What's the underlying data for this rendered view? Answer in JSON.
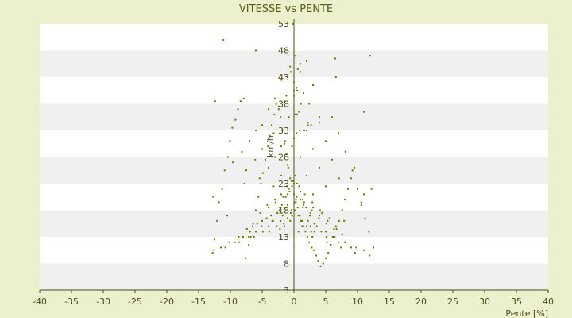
{
  "chart_data": {
    "type": "scatter",
    "title": "VITESSE vs PENTE",
    "xlabel": "Pente [%]",
    "ylabel": "km/h",
    "xlim": [
      -40,
      40
    ],
    "ylim": [
      3,
      53
    ],
    "x_ticks": [
      "-40",
      "-35",
      "-30",
      "-25",
      "-20",
      "-15",
      "-10",
      "-5",
      "0",
      "5",
      "10",
      "15",
      "20",
      "25",
      "30",
      "35",
      "40"
    ],
    "y_ticks": [
      "53",
      "48",
      "43",
      "38",
      "33",
      "28",
      "23",
      "18",
      "13",
      "8",
      "3"
    ],
    "grid": true,
    "legend": "none",
    "colors": {
      "background": "#ecf0cc",
      "band_light": "#ffffff",
      "band_dark": "#f0f0f0",
      "point": "#6b7a00",
      "axis": "#4d4d1a"
    },
    "points_x": [
      -12.8,
      -12.5,
      -12.1,
      -11.8,
      -11.3,
      -10.9,
      -10.4,
      -10.1,
      -9.7,
      -9.2,
      -8.8,
      -8.4,
      -7.9,
      -7.6,
      -7.1,
      -6.8,
      -6.4,
      -6.0,
      -5.6,
      -5.2,
      -4.9,
      -4.5,
      -4.1,
      -3.8,
      -3.5,
      -3.1,
      -2.8,
      -2.4,
      -2.1,
      -1.8,
      -1.5,
      -1.2,
      -0.9,
      -0.6,
      -0.3,
      0.0,
      0.3,
      0.6,
      0.9,
      1.2,
      1.5,
      1.8,
      2.1,
      2.4,
      2.8,
      3.1,
      3.5,
      3.8,
      4.2,
      4.6,
      5.0,
      5.4,
      5.8,
      6.2,
      6.7,
      7.1,
      7.6,
      8.0,
      8.5,
      9.0,
      9.5,
      10.0,
      10.6,
      11.2,
      11.8,
      12.5,
      -3.3,
      -2.6,
      -1.9,
      -1.3,
      -0.8,
      -0.4,
      0.1,
      0.5,
      1.0,
      1.4,
      1.9,
      2.5,
      3.2,
      -2.2,
      -1.6,
      -1.0,
      -0.5,
      0.2,
      0.7,
      1.3,
      2.0,
      2.7,
      -4.2,
      -3.0,
      -2.0,
      -1.1,
      -0.2,
      0.8,
      1.7,
      2.9,
      4.1,
      -5.3,
      -4.0,
      -2.9,
      -1.7,
      -0.7,
      0.4,
      1.6,
      3.0,
      4.4,
      5.6,
      -6.5,
      -5.0,
      -3.6,
      -2.3,
      -1.0,
      0.3,
      1.5,
      2.8,
      4.0,
      5.3,
      6.6,
      -7.4,
      -5.8,
      -4.3,
      -2.7,
      -1.2,
      0.2,
      1.4,
      2.6,
      3.9,
      5.1,
      6.3,
      7.6,
      -8.7,
      -6.9,
      -5.1,
      -3.4,
      -1.8,
      -0.4,
      0.9,
      2.2,
      3.6,
      5.0,
      6.4,
      8.1,
      -10.2,
      -8.0,
      -6.0,
      -4.0,
      -2.1,
      -0.3,
      1.1,
      2.6,
      4.3,
      6.1,
      8.0,
      9.8,
      -11.5,
      -9.3,
      -7.1,
      -4.9,
      -2.7,
      -0.6,
      1.3,
      3.2,
      5.1,
      7.0,
      9.0,
      11.0,
      -12.6,
      -10.8,
      -8.6,
      -6.3,
      -3.9,
      -1.5,
      0.7,
      2.9,
      5.2,
      7.4,
      9.6,
      11.9,
      -9.6,
      -7.5,
      -5.4,
      -3.2,
      -1.0,
      1.0,
      3.0,
      5.0,
      7.1,
      9.2,
      -8.2,
      -6.1,
      -4.0,
      -2.0,
      0.0,
      2.0,
      4.0,
      6.0,
      8.1,
      -7.0,
      -5.0,
      -3.0,
      -1.0,
      1.0,
      3.0,
      5.0,
      7.0,
      -6.0,
      -4.0,
      -2.0,
      0.0,
      2.0,
      4.0,
      6.0,
      -5.0,
      -3.2,
      -1.4,
      0.4,
      2.2,
      4.0,
      -4.0,
      -2.4,
      -0.8,
      0.8,
      2.4,
      -3.0,
      -1.5,
      0.0,
      1.5,
      3.0,
      -2.0,
      -1.0,
      0.0,
      1.0,
      2.0,
      -0.6,
      0.4,
      1.1,
      -1.2,
      0.0,
      0.9,
      -0.3,
      0.5,
      2.2,
      -12.4,
      -12.7,
      11.0,
      12.2,
      -7.8,
      7.9,
      -10.5,
      10.6,
      -11.1,
      12.0,
      -6.0,
      6.5,
      1.0,
      0.6,
      0.2,
      0.1,
      -0.2,
      -0.5,
      6.6,
      11.0,
      2.7,
      0.5,
      1.6,
      -1.2,
      2.0,
      -0.6,
      1.8
    ],
    "points_y": [
      10.0,
      12.5,
      16.0,
      19.5,
      22.0,
      25.5,
      28.0,
      31.0,
      33.5,
      35.0,
      37.0,
      38.5,
      39.0,
      9.0,
      11.5,
      13.0,
      15.5,
      18.0,
      20.5,
      23.0,
      25.0,
      27.5,
      30.0,
      32.0,
      34.0,
      36.0,
      38.0,
      37.5,
      35.5,
      33.0,
      30.5,
      28.5,
      26.0,
      24.0,
      22.5,
      21.0,
      19.5,
      18.5,
      17.0,
      16.0,
      15.0,
      14.0,
      13.0,
      12.0,
      11.0,
      10.5,
      9.5,
      8.5,
      7.5,
      8.0,
      9.0,
      10.0,
      11.5,
      13.0,
      14.5,
      16.0,
      18.0,
      20.0,
      22.0,
      24.0,
      26.0,
      22.0,
      19.0,
      16.5,
      14.0,
      11.0,
      16.0,
      17.5,
      19.0,
      20.5,
      22.0,
      23.5,
      24.5,
      23.0,
      21.5,
      20.0,
      18.5,
      17.0,
      15.5,
      14.5,
      15.5,
      16.5,
      17.5,
      18.0,
      17.0,
      16.0,
      15.0,
      14.0,
      19.0,
      20.0,
      21.0,
      22.5,
      23.5,
      22.5,
      21.0,
      19.5,
      18.0,
      17.5,
      18.5,
      19.5,
      20.5,
      21.5,
      20.5,
      19.5,
      18.5,
      17.5,
      16.5,
      15.0,
      16.0,
      17.0,
      18.0,
      19.0,
      20.0,
      19.0,
      18.0,
      17.0,
      16.0,
      15.0,
      14.5,
      15.5,
      16.5,
      17.5,
      18.5,
      19.5,
      18.5,
      17.5,
      16.5,
      15.5,
      14.5,
      13.5,
      13.0,
      14.0,
      15.0,
      16.0,
      17.0,
      18.0,
      17.0,
      16.0,
      15.0,
      14.0,
      13.0,
      12.0,
      12.0,
      13.0,
      14.0,
      15.0,
      16.0,
      17.0,
      16.0,
      15.0,
      14.0,
      13.0,
      12.0,
      11.0,
      11.0,
      12.0,
      13.0,
      14.0,
      15.0,
      16.0,
      15.0,
      14.0,
      13.0,
      12.0,
      11.0,
      10.5,
      10.5,
      11.0,
      12.0,
      13.0,
      14.0,
      15.0,
      14.0,
      13.0,
      12.0,
      11.0,
      10.0,
      9.5,
      27.0,
      25.5,
      24.0,
      22.5,
      21.0,
      20.0,
      21.0,
      22.5,
      24.0,
      25.5,
      29.0,
      27.5,
      26.0,
      24.5,
      23.0,
      24.5,
      26.0,
      27.5,
      29.0,
      31.0,
      29.5,
      28.0,
      26.5,
      28.0,
      29.5,
      31.0,
      32.5,
      33.0,
      31.5,
      30.0,
      31.5,
      33.0,
      34.5,
      35.5,
      34.0,
      32.5,
      31.0,
      32.5,
      34.0,
      35.5,
      37.0,
      37.0,
      35.5,
      36.5,
      38.0,
      39.0,
      38.5,
      39.5,
      40.0,
      41.5,
      42.5,
      43.0,
      42.0,
      44.0,
      46.0,
      45.0,
      41.0,
      38.0,
      39.5,
      40.5,
      33.0,
      30.0,
      36.0,
      34.5,
      38.5,
      20.5,
      21.0,
      22.0,
      23.0,
      16.0,
      17.0,
      19.5,
      50.0,
      47.0,
      48.0,
      46.5,
      45.5,
      44.5,
      36.0,
      47.0,
      53.0,
      44.0,
      43.0,
      36.5,
      34.0,
      40.5,
      33.0
    ]
  }
}
